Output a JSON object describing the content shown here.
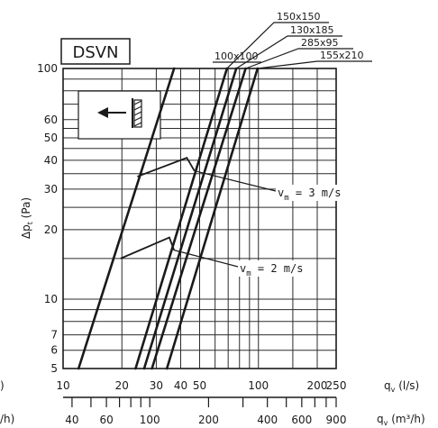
{
  "chart_data": {
    "type": "line",
    "title": "DSVN",
    "ylabel": "Δp_t (Pa)",
    "xlabel": "q_v (l/s)",
    "x2label": "q_v (m³/h)",
    "xscale": "log",
    "yscale": "log",
    "xlim": [
      10,
      250
    ],
    "ylim": [
      5,
      100
    ],
    "grid": true,
    "x_ticks": [
      10,
      20,
      30,
      40,
      50,
      100,
      200,
      250
    ],
    "x_tick_labels": [
      "10",
      "20",
      "30",
      "40",
      "50",
      "100",
      "200",
      "250"
    ],
    "x2_ticks": [
      40,
      60,
      100,
      200,
      400,
      600,
      900
    ],
    "x2_tick_labels": [
      "40",
      "60",
      "100",
      "200",
      "400",
      "600",
      "900"
    ],
    "y_ticks": [
      5,
      6,
      7,
      10,
      20,
      30,
      40,
      50,
      60,
      100
    ],
    "y_tick_labels": [
      "5",
      "6",
      "7",
      "10",
      "20",
      "30",
      "40",
      "50",
      "60",
      "100"
    ],
    "series": [
      {
        "name": "100x100",
        "x": [
          12.0,
          37.0
        ],
        "y": [
          5,
          100
        ]
      },
      {
        "name": "150x150",
        "x": [
          23.5,
          69.0
        ],
        "y": [
          5,
          100
        ]
      },
      {
        "name": "130x185",
        "x": [
          26.0,
          77.0
        ],
        "y": [
          5,
          100
        ]
      },
      {
        "name": "285x95",
        "x": [
          28.5,
          86.0
        ],
        "y": [
          5,
          100
        ]
      },
      {
        "name": "155x210",
        "x": [
          34.0,
          99.0
        ],
        "y": [
          5,
          100
        ]
      }
    ],
    "velocity_lines": [
      {
        "label": "v_m = 3 m/s",
        "x": [
          24.0,
          43.0,
          47.0
        ],
        "y": [
          34,
          41,
          36
        ]
      },
      {
        "label": "v_m = 2 m/s",
        "x": [
          19.7,
          35.0,
          37.0
        ],
        "y": [
          15,
          18.5,
          16.3
        ]
      }
    ],
    "velocity_label_parts": [
      {
        "v": "v",
        "sub": "m",
        "rest": "= 3 m/s"
      },
      {
        "v": "v",
        "sub": "m",
        "rest": "= 2 m/s"
      }
    ]
  },
  "axis_text": {
    "ylabel_main": "Δp",
    "ylabel_sub": "t",
    "ylabel_unit": "(Pa)",
    "xlabel_main": "q",
    "xlabel_sub": "v",
    "xlabel_unit": "(l/s)",
    "x2label_main": "q",
    "x2label_sub": "v",
    "x2label_unit": "(m³/h)",
    "left_edge_top": ")",
    "left_edge_bottom": "/h)"
  }
}
